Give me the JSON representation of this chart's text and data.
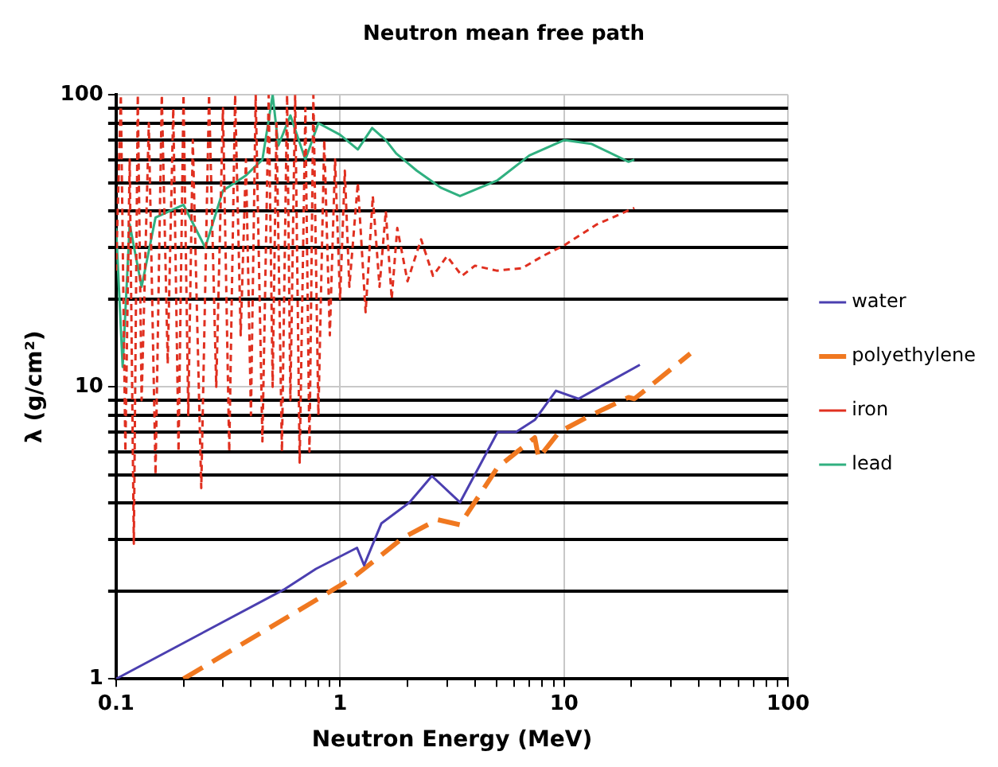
{
  "chart_data": {
    "type": "line",
    "title": "Neutron mean free path",
    "xlabel": "Neutron Energy (MeV)",
    "ylabel": "λ (g/cm²)",
    "log": "xy",
    "grid": true,
    "legend": "right",
    "marker": "none",
    "xlim": [
      0.1,
      100
    ],
    "ylim": [
      1,
      100
    ],
    "xticks": [
      0.1,
      {
        "value": 0.2,
        "label": null
      },
      {
        "value": 0.3,
        "label": null
      },
      {
        "value": 0.4,
        "label": null
      },
      {
        "value": 0.5,
        "label": null
      },
      {
        "value": 0.6,
        "label": null
      },
      {
        "value": 0.7,
        "label": null
      },
      {
        "value": 0.8,
        "label": null
      },
      {
        "value": 0.9,
        "label": null
      },
      1,
      {
        "value": 2,
        "label": null
      },
      {
        "value": 3,
        "label": null
      },
      {
        "value": 4,
        "label": null
      },
      {
        "value": 5,
        "label": null
      },
      {
        "value": 6,
        "label": null
      },
      {
        "value": 7,
        "label": null
      },
      {
        "value": 8,
        "label": null
      },
      {
        "value": 9,
        "label": null
      },
      10,
      {
        "value": 20,
        "label": null
      },
      {
        "value": 30,
        "label": null
      },
      {
        "value": 40,
        "label": null
      },
      {
        "value": 50,
        "label": null
      },
      {
        "value": 60,
        "label": null
      },
      {
        "value": 70,
        "label": null
      },
      {
        "value": 80,
        "label": null
      },
      {
        "value": 90,
        "label": null
      },
      100
    ],
    "yticks": [
      1,
      {
        "value": 2,
        "label": null
      },
      {
        "value": 3,
        "label": null
      },
      {
        "value": 4,
        "label": null
      },
      {
        "value": 5,
        "label": null
      },
      {
        "value": 6,
        "label": null
      },
      {
        "value": 7,
        "label": null
      },
      {
        "value": 8,
        "label": null
      },
      {
        "value": 9,
        "label": null
      },
      10,
      {
        "value": 20,
        "label": null
      },
      {
        "value": 30,
        "label": null
      },
      {
        "value": 40,
        "label": null
      },
      {
        "value": 50,
        "label": null
      },
      {
        "value": 60,
        "label": null
      },
      {
        "value": 70,
        "label": null
      },
      {
        "value": 80,
        "label": null
      },
      {
        "value": 90,
        "label": null
      },
      100
    ],
    "series": [
      {
        "name": "water",
        "color": "#4b3fb0",
        "line_style": "solid",
        "x": [
          0.1,
          0.56,
          0.78,
          1.19,
          1.28,
          1.53,
          2.04,
          2.57,
          3.43,
          5.05,
          6.1,
          7.4,
          9.2,
          11.6,
          14.8,
          21.8
        ],
        "values": [
          1,
          2.02,
          2.38,
          2.81,
          2.45,
          3.41,
          4.02,
          4.95,
          4.02,
          7.0,
          7.0,
          7.7,
          9.7,
          9.1,
          10.1,
          11.9
        ]
      },
      {
        "name": "polyethylene",
        "color": "#f07820",
        "line_style": "dashed",
        "x": [
          0.2,
          0.78,
          1.14,
          1.92,
          2.72,
          3.43,
          5.05,
          7.4,
          7.7,
          9.5,
          13.2,
          19.4,
          20.6,
          36.6
        ],
        "values": [
          1,
          1.86,
          2.22,
          3.05,
          3.51,
          3.37,
          5.3,
          6.7,
          5.7,
          7.0,
          8.0,
          9.2,
          9.1,
          13.0
        ]
      },
      {
        "name": "iron",
        "color": "#e03020",
        "line_style": "dotted",
        "x": [
          0.1,
          0.105,
          0.11,
          0.115,
          0.12,
          0.125,
          0.13,
          0.14,
          0.15,
          0.16,
          0.17,
          0.18,
          0.19,
          0.2,
          0.21,
          0.22,
          0.24,
          0.26,
          0.28,
          0.3,
          0.32,
          0.34,
          0.36,
          0.38,
          0.4,
          0.42,
          0.45,
          0.48,
          0.5,
          0.52,
          0.55,
          0.58,
          0.6,
          0.63,
          0.66,
          0.7,
          0.73,
          0.76,
          0.8,
          0.85,
          0.9,
          0.95,
          1.0,
          1.05,
          1.1,
          1.2,
          1.3,
          1.4,
          1.5,
          1.6,
          1.7,
          1.8,
          2.0,
          2.3,
          2.6,
          3,
          3.5,
          4,
          5,
          6.5,
          8,
          10,
          14,
          20.6
        ],
        "values": [
          25,
          100,
          6,
          60,
          2.9,
          100,
          9,
          80,
          5,
          100,
          12,
          90,
          6,
          100,
          8,
          70,
          4.5,
          100,
          10,
          90,
          6,
          100,
          15,
          60,
          8,
          100,
          6.5,
          100,
          10,
          80,
          6,
          100,
          9,
          100,
          5.5,
          90,
          6,
          100,
          8,
          70,
          15,
          60,
          20,
          55,
          22,
          50,
          18,
          45,
          22,
          40,
          20,
          35,
          23,
          32,
          24,
          28,
          24,
          26,
          25,
          25.5,
          28,
          30.5,
          36,
          41
        ]
      },
      {
        "name": "lead",
        "color": "#30b080",
        "line_style": "solid",
        "x": [
          0.1,
          0.107,
          0.115,
          0.13,
          0.15,
          0.2,
          0.25,
          0.3,
          0.38,
          0.45,
          0.5,
          0.53,
          0.6,
          0.7,
          0.8,
          1,
          1.2,
          1.39,
          1.6,
          1.78,
          2.2,
          2.83,
          3.43,
          5.05,
          7,
          10,
          13.2,
          19.4,
          20.6
        ],
        "values": [
          35,
          11.7,
          36,
          22,
          38,
          42,
          30,
          47,
          53,
          60,
          100,
          67,
          85,
          60,
          80,
          73,
          65,
          77,
          70,
          63,
          55,
          48,
          45,
          51,
          62,
          70,
          68,
          59,
          60
        ]
      }
    ]
  }
}
